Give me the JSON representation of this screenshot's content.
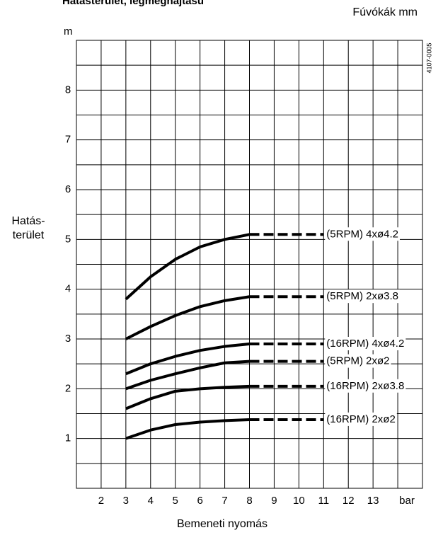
{
  "chart_data": {
    "type": "line",
    "title": "Hatásterület, legmeghajtású",
    "subtitle": "Fúvókák mm",
    "code": "4107-0005",
    "ylabel": [
      "Hatás-",
      "terület"
    ],
    "yunit": "m",
    "xlabel": "Bemeneti  nyomás",
    "xunit": "bar",
    "x": [
      3,
      4,
      5,
      6,
      7,
      8,
      11
    ],
    "dashed_from_x": 8,
    "series": [
      {
        "name": "(5RPM) 4xø4.2",
        "color": "#000000",
        "values": [
          3.8,
          4.25,
          4.6,
          4.85,
          5.0,
          5.1,
          5.1
        ]
      },
      {
        "name": "(5RPM) 2xø3.8",
        "color": "#000000",
        "values": [
          3.0,
          3.25,
          3.47,
          3.65,
          3.77,
          3.85,
          3.85
        ]
      },
      {
        "name": "(16RPM) 4xø4.2",
        "color": "#000000",
        "values": [
          2.3,
          2.5,
          2.65,
          2.77,
          2.85,
          2.9,
          2.9
        ]
      },
      {
        "name": "(5RPM) 2xø2",
        "color": "#000000",
        "values": [
          2.0,
          2.17,
          2.3,
          2.42,
          2.52,
          2.55,
          2.55
        ]
      },
      {
        "name": "(16RPM) 2xø3.8",
        "color": "#000000",
        "values": [
          1.6,
          1.8,
          1.95,
          2.0,
          2.03,
          2.05,
          2.05
        ]
      },
      {
        "name": "(16RPM) 2xø2",
        "color": "#000000",
        "values": [
          1.0,
          1.17,
          1.28,
          1.33,
          1.36,
          1.38,
          1.38
        ]
      }
    ],
    "xlim": [
      1,
      15
    ],
    "xticks": [
      2,
      3,
      4,
      5,
      6,
      7,
      8,
      9,
      10,
      11,
      12,
      13
    ],
    "ylim": [
      0,
      9
    ],
    "yticks": [
      1,
      2,
      3,
      4,
      5,
      6,
      7,
      8
    ],
    "xgrid_step": 1,
    "ygrid_step": 0.5,
    "grid": true
  }
}
